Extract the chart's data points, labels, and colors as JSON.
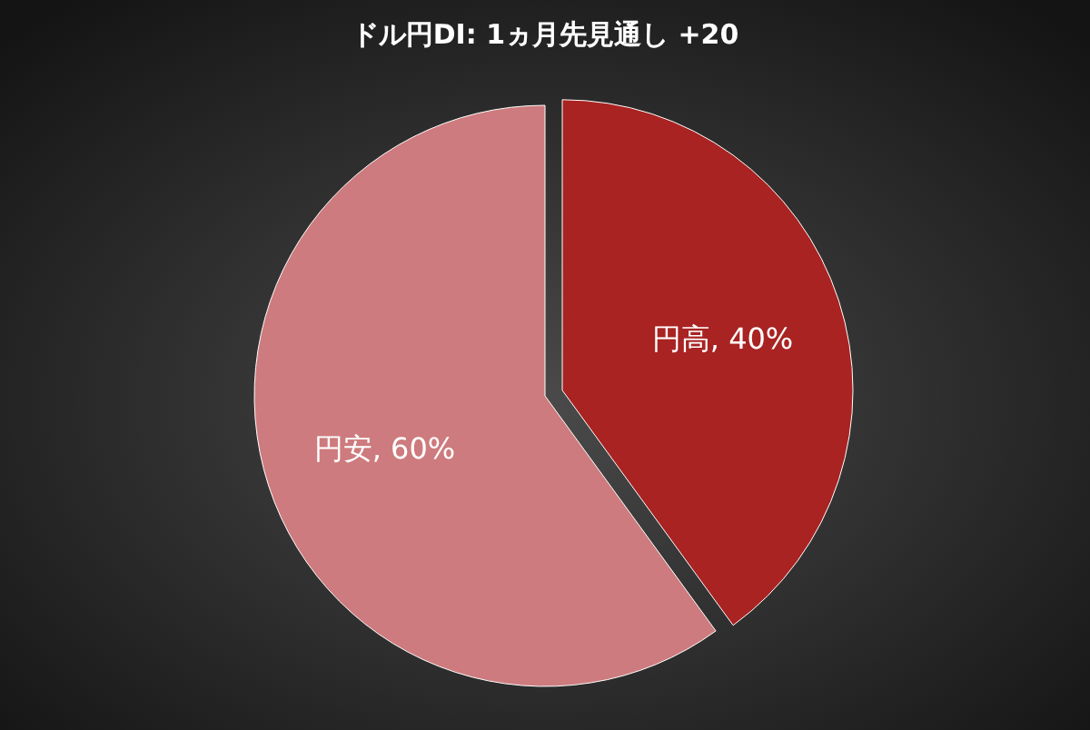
{
  "chart_data": {
    "type": "pie",
    "title": "ドル円DI: 1ヵ月先見通し +20",
    "categories": [
      "円高",
      "円安"
    ],
    "values": [
      40,
      60
    ],
    "colors": [
      "#a82322",
      "#cd7b7e"
    ],
    "value_labels": [
      "40%",
      "60%"
    ]
  }
}
